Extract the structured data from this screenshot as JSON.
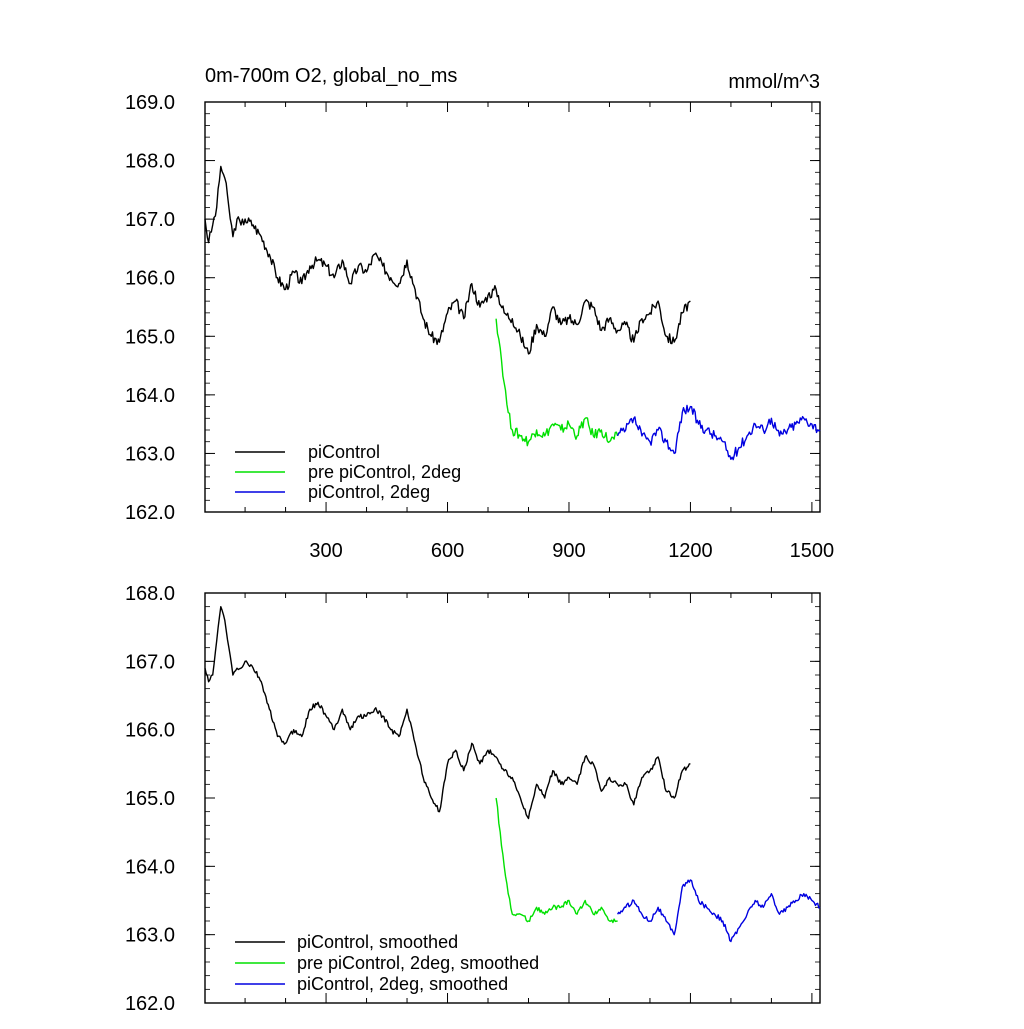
{
  "chart_data": [
    {
      "type": "line",
      "title": "0m-700m O2, global_no_ms",
      "units": "mmol/m^3",
      "xlim": [
        1,
        1520
      ],
      "ylim": [
        162.0,
        169.0
      ],
      "x_ticks": [
        300,
        600,
        900,
        1200,
        1500
      ],
      "y_ticks": [
        "162.0",
        "163.0",
        "164.0",
        "165.0",
        "166.0",
        "167.0",
        "168.0",
        "169.0"
      ],
      "grid": false,
      "legend": "bottom-left",
      "series": [
        {
          "name": "piControl",
          "color": "#000000",
          "x": [
            1,
            10,
            20,
            30,
            40,
            50,
            60,
            70,
            80,
            90,
            100,
            120,
            140,
            160,
            180,
            200,
            220,
            240,
            260,
            280,
            300,
            320,
            340,
            360,
            380,
            400,
            420,
            440,
            460,
            480,
            500,
            520,
            540,
            560,
            580,
            600,
            620,
            640,
            660,
            680,
            700,
            720,
            740,
            760,
            780,
            800,
            820,
            840,
            860,
            880,
            900,
            920,
            940,
            960,
            980,
            1000,
            1020,
            1040,
            1060,
            1080,
            1100,
            1120,
            1140,
            1160,
            1180,
            1200
          ],
          "values": [
            167.0,
            166.6,
            166.9,
            167.2,
            167.9,
            167.7,
            167.2,
            166.7,
            167.0,
            166.9,
            167.0,
            166.9,
            166.7,
            166.4,
            166.0,
            165.8,
            166.1,
            165.9,
            166.2,
            166.3,
            166.2,
            166.0,
            166.3,
            165.9,
            166.2,
            166.1,
            166.4,
            166.2,
            166.0,
            165.9,
            166.3,
            165.8,
            165.3,
            165.0,
            164.9,
            165.4,
            165.6,
            165.3,
            165.9,
            165.5,
            165.7,
            165.8,
            165.4,
            165.3,
            165.0,
            164.7,
            165.2,
            165.0,
            165.5,
            165.2,
            165.3,
            165.2,
            165.6,
            165.5,
            165.1,
            165.3,
            165.1,
            165.2,
            164.9,
            165.3,
            165.4,
            165.6,
            165.0,
            164.9,
            165.4,
            165.6
          ]
        },
        {
          "name": "pre piControl, 2deg",
          "color": "#00e000",
          "x": [
            720,
            730,
            740,
            750,
            760,
            780,
            800,
            820,
            840,
            860,
            880,
            900,
            920,
            940,
            960,
            980,
            1000,
            1020
          ],
          "values": [
            165.3,
            164.8,
            164.2,
            163.7,
            163.4,
            163.3,
            163.2,
            163.4,
            163.3,
            163.5,
            163.4,
            163.5,
            163.3,
            163.6,
            163.3,
            163.4,
            163.2,
            163.3
          ]
        },
        {
          "name": "piControl, 2deg",
          "color": "#0000e0",
          "x": [
            1020,
            1040,
            1060,
            1080,
            1100,
            1120,
            1140,
            1160,
            1180,
            1200,
            1220,
            1240,
            1260,
            1280,
            1300,
            1320,
            1340,
            1360,
            1380,
            1400,
            1420,
            1440,
            1460,
            1480,
            1500,
            1520
          ],
          "values": [
            163.3,
            163.4,
            163.6,
            163.3,
            163.2,
            163.4,
            163.2,
            163.0,
            163.7,
            163.8,
            163.5,
            163.4,
            163.3,
            163.2,
            162.9,
            163.1,
            163.3,
            163.5,
            163.4,
            163.6,
            163.3,
            163.4,
            163.5,
            163.6,
            163.5,
            163.4
          ]
        }
      ]
    },
    {
      "type": "line",
      "xlim": [
        1,
        1520
      ],
      "ylim": [
        162.0,
        168.0
      ],
      "y_ticks": [
        "162.0",
        "163.0",
        "164.0",
        "165.0",
        "166.0",
        "167.0",
        "168.0"
      ],
      "grid": false,
      "legend": "bottom-left",
      "series": [
        {
          "name": "piControl, smoothed",
          "color": "#000000",
          "x": [
            1,
            10,
            20,
            30,
            40,
            50,
            60,
            70,
            80,
            90,
            100,
            120,
            140,
            160,
            180,
            200,
            220,
            240,
            260,
            280,
            300,
            320,
            340,
            360,
            380,
            400,
            420,
            440,
            460,
            480,
            500,
            520,
            540,
            560,
            580,
            600,
            620,
            640,
            660,
            680,
            700,
            720,
            740,
            760,
            780,
            800,
            820,
            840,
            860,
            880,
            900,
            920,
            940,
            960,
            980,
            1000,
            1020,
            1040,
            1060,
            1080,
            1100,
            1120,
            1140,
            1160,
            1180,
            1200
          ],
          "values": [
            166.9,
            166.7,
            166.8,
            167.3,
            167.8,
            167.6,
            167.2,
            166.8,
            166.9,
            166.9,
            167.0,
            166.9,
            166.7,
            166.3,
            165.9,
            165.8,
            166.0,
            165.9,
            166.3,
            166.4,
            166.2,
            166.0,
            166.3,
            166.0,
            166.2,
            166.2,
            166.3,
            166.2,
            166.0,
            165.9,
            166.3,
            165.8,
            165.3,
            165.0,
            164.8,
            165.5,
            165.7,
            165.4,
            165.8,
            165.5,
            165.7,
            165.6,
            165.4,
            165.3,
            165.0,
            164.7,
            165.2,
            165.0,
            165.4,
            165.2,
            165.3,
            165.2,
            165.6,
            165.5,
            165.1,
            165.3,
            165.2,
            165.2,
            164.9,
            165.3,
            165.4,
            165.6,
            165.1,
            165.0,
            165.4,
            165.5
          ]
        },
        {
          "name": "pre piControl, 2deg, smoothed",
          "color": "#00e000",
          "x": [
            720,
            730,
            740,
            750,
            760,
            780,
            800,
            820,
            840,
            860,
            880,
            900,
            920,
            940,
            960,
            980,
            1000,
            1020
          ],
          "values": [
            165.0,
            164.5,
            164.0,
            163.6,
            163.3,
            163.3,
            163.2,
            163.4,
            163.3,
            163.4,
            163.4,
            163.5,
            163.3,
            163.5,
            163.3,
            163.4,
            163.2,
            163.2
          ]
        },
        {
          "name": "piControl, 2deg, smoothed",
          "color": "#0000e0",
          "x": [
            1020,
            1040,
            1060,
            1080,
            1100,
            1120,
            1140,
            1160,
            1180,
            1200,
            1220,
            1240,
            1260,
            1280,
            1300,
            1320,
            1340,
            1360,
            1380,
            1400,
            1420,
            1440,
            1460,
            1480,
            1500,
            1520
          ],
          "values": [
            163.3,
            163.4,
            163.5,
            163.3,
            163.2,
            163.4,
            163.2,
            163.0,
            163.7,
            163.8,
            163.5,
            163.4,
            163.3,
            163.2,
            162.9,
            163.1,
            163.3,
            163.5,
            163.4,
            163.6,
            163.3,
            163.4,
            163.5,
            163.6,
            163.5,
            163.4
          ]
        }
      ]
    }
  ]
}
